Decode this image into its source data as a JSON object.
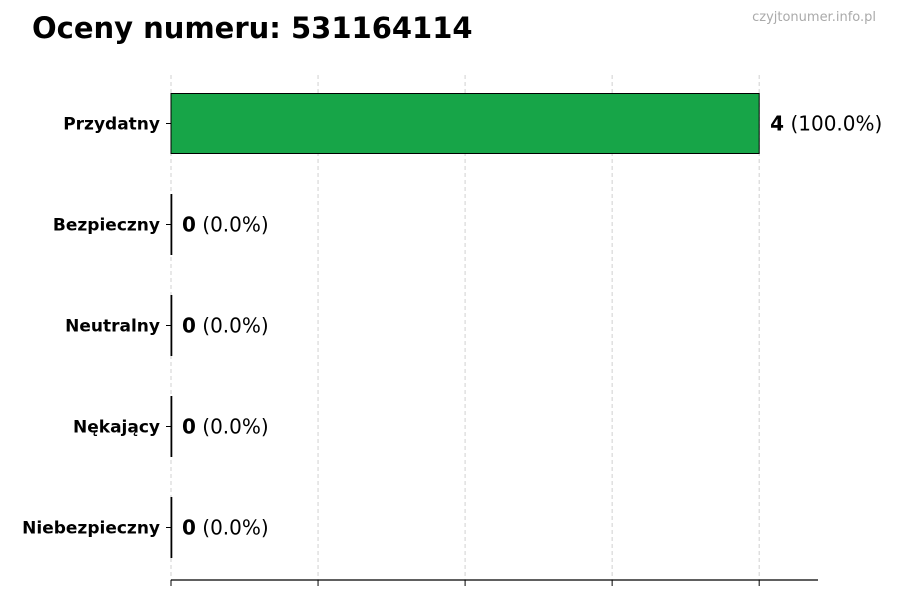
{
  "title": "Oceny numeru: 531164114",
  "watermark": "czyjtonumer.info.pl",
  "chart_data": {
    "type": "bar",
    "orientation": "horizontal",
    "title": "Oceny numeru: 531164114",
    "categories": [
      "Przydatny",
      "Bezpieczny",
      "Neutralny",
      "Nękający",
      "Niebezpieczny"
    ],
    "values": [
      4,
      0,
      0,
      0,
      0
    ],
    "percent_labels": [
      "(100.0%)",
      "(0.0%)",
      "(0.0%)",
      "(0.0%)",
      "(0.0%)"
    ],
    "colors": [
      "#17a548",
      "#17a548",
      "#17a548",
      "#17a548",
      "#17a548"
    ],
    "xlim": [
      0,
      4.4
    ],
    "xticks": [
      0,
      1,
      2,
      3,
      4
    ],
    "xtick_labels_shown": false,
    "grid": "vertical dashed",
    "xlabel": "",
    "ylabel": ""
  }
}
